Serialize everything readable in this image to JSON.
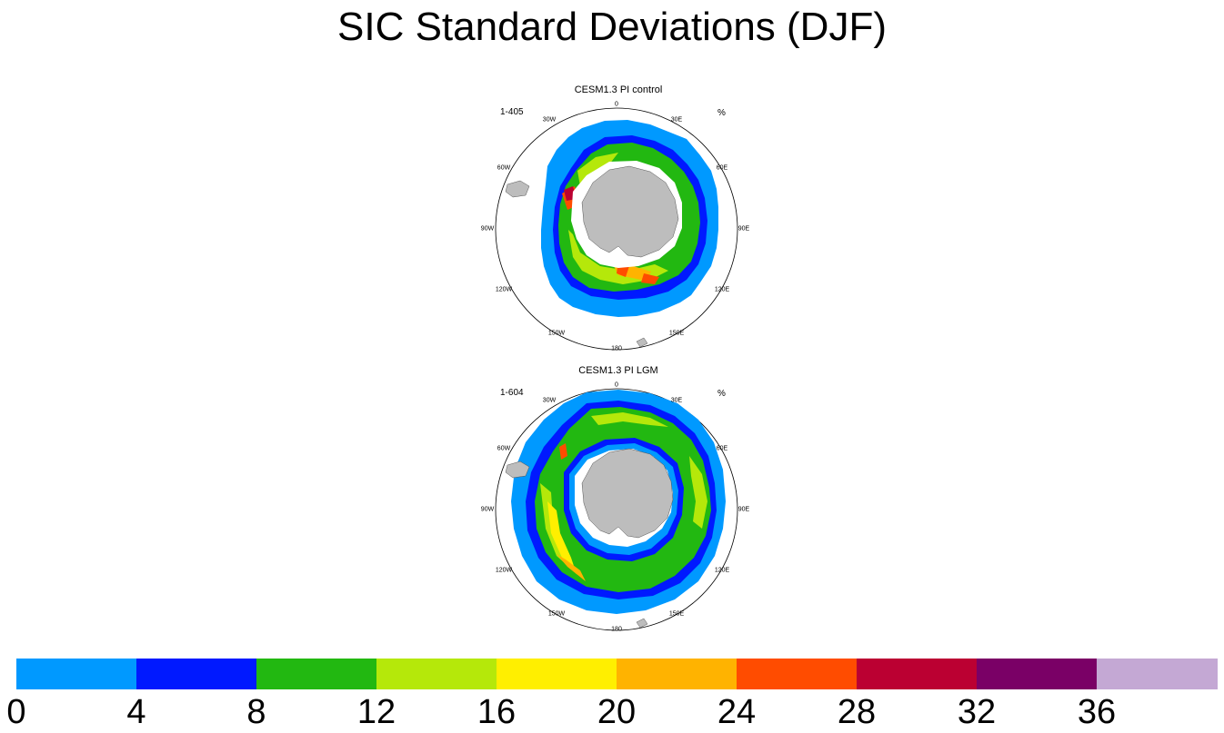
{
  "title": "SIC Standard Deviations (DJF)",
  "panels": [
    {
      "title": "CESM1.3 PI control",
      "range_label": "1-405",
      "unit": "%"
    },
    {
      "title": "CESM1.3 PI LGM",
      "range_label": "1-604",
      "unit": "%"
    }
  ],
  "longitude_labels": [
    "0",
    "30E",
    "60E",
    "90E",
    "120E",
    "150E",
    "180",
    "150W",
    "120W",
    "90W",
    "60W",
    "30W"
  ],
  "colorbar": {
    "levels": [
      "0",
      "4",
      "8",
      "12",
      "16",
      "20",
      "24",
      "28",
      "32",
      "36"
    ],
    "colors": [
      "#0099ff",
      "#0019ff",
      "#22b811",
      "#b5e80a",
      "#ffef00",
      "#ffb300",
      "#ff4c00",
      "#bb0032",
      "#7a0066",
      "#c4a8d4"
    ]
  },
  "colors": {
    "land": "#bdbdbd",
    "coast": "#555555"
  }
}
